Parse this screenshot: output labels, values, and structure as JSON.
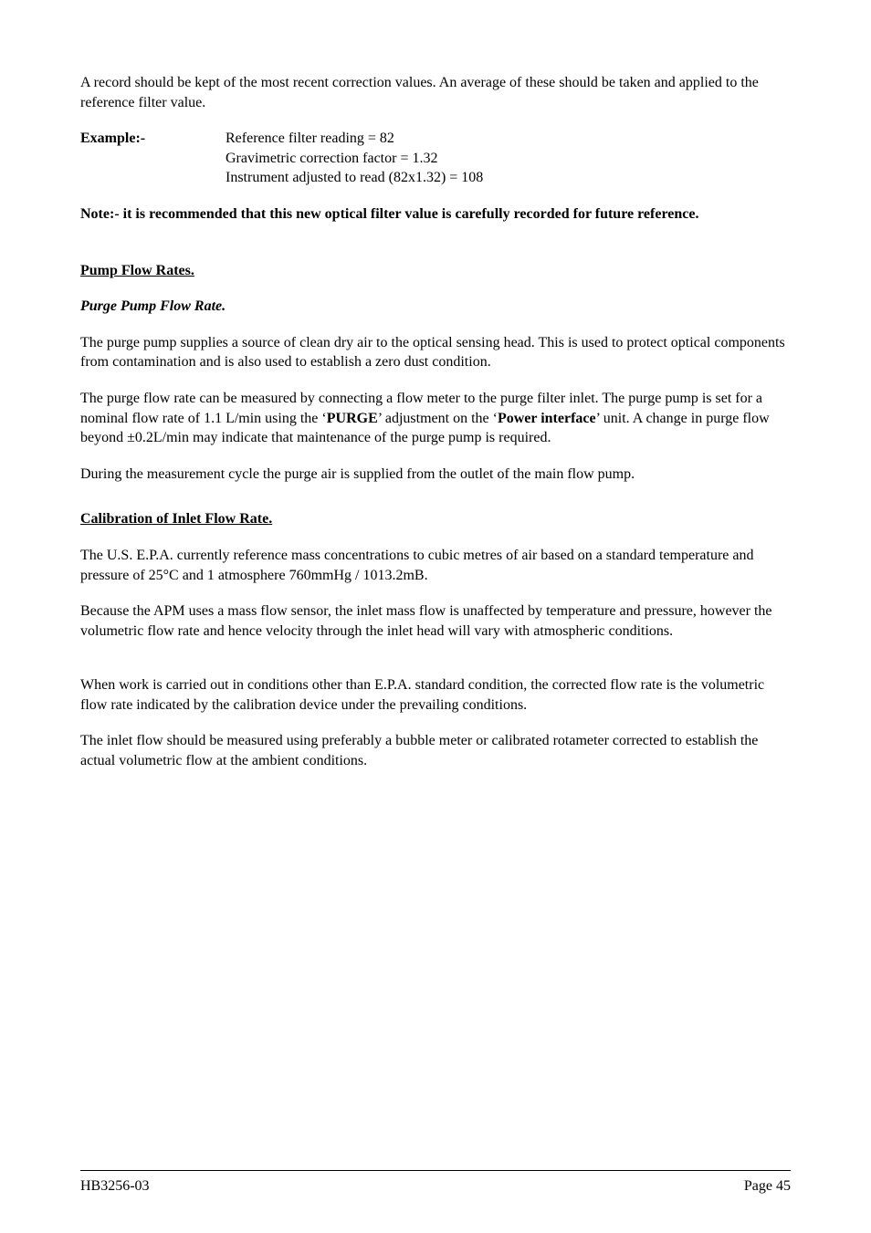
{
  "intro_para": "A record should be kept of the most recent correction values. An average of these should be taken and applied to the reference filter value.",
  "example": {
    "label": "Example:-",
    "line1": "Reference filter reading = 82",
    "line2": "Gravimetric correction factor = 1.32",
    "line3": "Instrument adjusted to read (82x1.32) = 108"
  },
  "note_text": "Note:- it is recommended that this new optical filter value is carefully recorded for future reference.",
  "pump_flow_rates": {
    "heading": "Pump Flow Rates.",
    "sub_heading": "Purge Pump Flow Rate.",
    "para1": "The purge pump supplies a source of clean dry air to the optical sensing head. This is used to protect optical components from contamination and is also used to establish a zero dust condition.",
    "para2_prefix": "The purge flow rate can be measured by connecting a flow meter to the purge filter inlet. The purge pump is set for a nominal flow rate of 1.1 L/min using the ‘",
    "para2_bold1": "PURGE",
    "para2_mid1": "’ adjustment on the ‘",
    "para2_bold2": "Power interface",
    "para2_suffix": "’ unit. A change in purge flow beyond  ±0.2L/min may indicate that maintenance of the purge pump is required.",
    "para3": "During the measurement cycle the purge air is supplied from the outlet of the main flow pump."
  },
  "calibration": {
    "heading": "Calibration of Inlet Flow Rate.",
    "para1": "The U.S.  E.P.A. currently reference mass concentrations to cubic metres of air  based on a standard temperature and pressure of 25°C and 1 atmosphere 760mmHg / 1013.2mB.",
    "para2": "Because the APM uses a mass flow sensor, the inlet mass flow is unaffected by temperature and pressure, however the volumetric flow rate and hence velocity through the inlet head will vary with atmospheric conditions.",
    "para3": "When work is carried out in conditions other than E.P.A. standard condition, the corrected flow rate is the volumetric flow rate indicated by the calibration device under the prevailing conditions.",
    "para4": "The inlet flow should be measured using preferably a bubble meter or calibrated rotameter corrected to establish the actual volumetric flow at the ambient conditions."
  },
  "footer": {
    "left": "HB3256-03",
    "right": "Page 45"
  }
}
